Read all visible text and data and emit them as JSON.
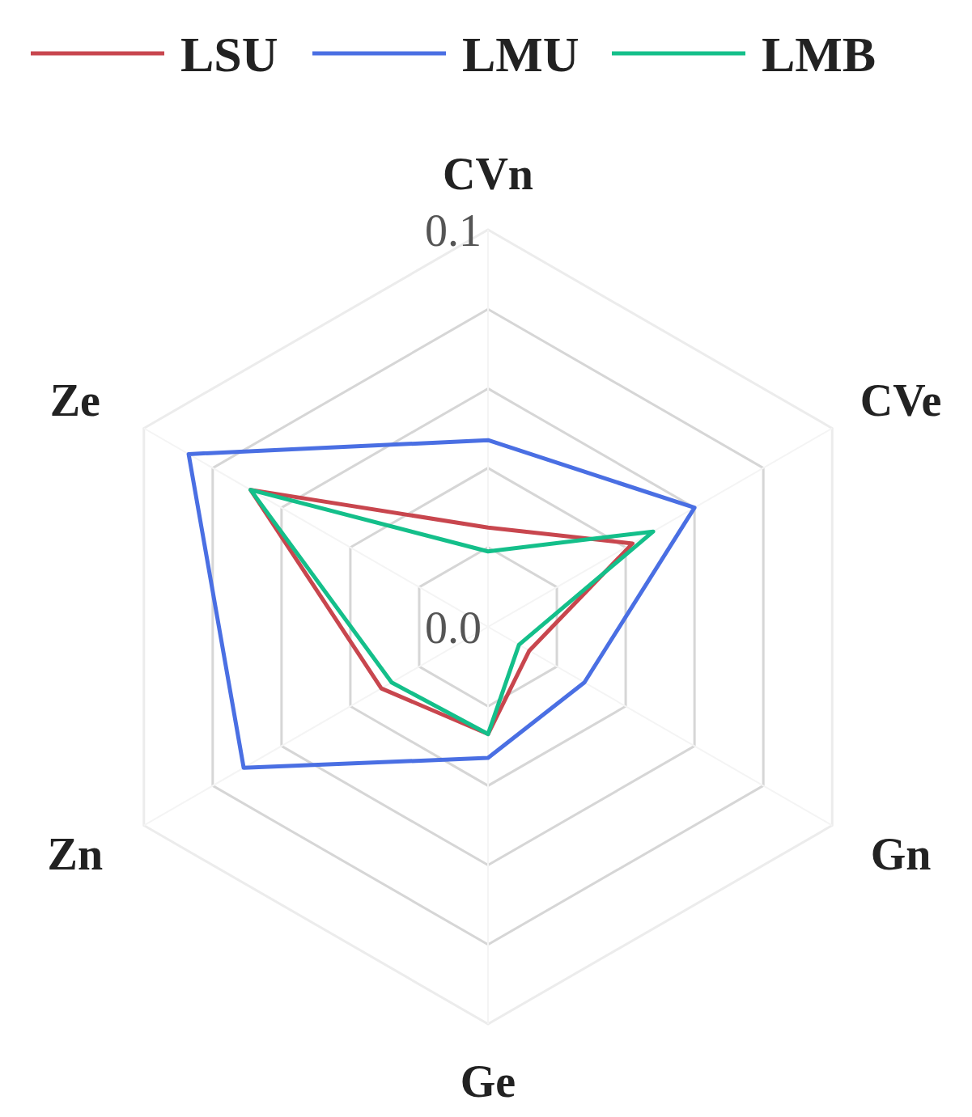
{
  "chart_data": {
    "type": "radar",
    "categories": [
      "CVn",
      "CVe",
      "Gn",
      "Ge",
      "Zn",
      "Ze"
    ],
    "series": [
      {
        "name": "LSU",
        "color": "#c8464e",
        "values": [
          0.025,
          0.042,
          0.012,
          0.027,
          0.031,
          0.069
        ]
      },
      {
        "name": "LMU",
        "color": "#4a6fe3",
        "values": [
          0.047,
          0.06,
          0.028,
          0.033,
          0.071,
          0.087
        ]
      },
      {
        "name": "LMB",
        "color": "#14bf8a",
        "values": [
          0.019,
          0.048,
          0.009,
          0.027,
          0.028,
          0.069
        ]
      }
    ],
    "ylim": [
      0,
      0.1
    ],
    "yticks": [
      {
        "value": 0,
        "label": "0.0"
      },
      {
        "value": 0.1,
        "label": "0.1"
      }
    ],
    "grid": true,
    "legend": "top"
  }
}
